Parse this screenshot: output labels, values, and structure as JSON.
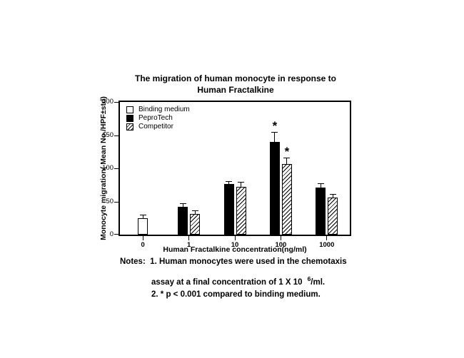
{
  "title": {
    "line1": "The migration of human monocyte in response to",
    "line2": "Human Fractalkine"
  },
  "chart_data": {
    "type": "bar",
    "title": "The migration of human monocyte in response to Human Fractalkine",
    "categories": [
      "0",
      "1",
      "10",
      "100",
      "1000"
    ],
    "series": [
      {
        "name": "Binding medium",
        "style": "open",
        "values": [
          25,
          null,
          null,
          null,
          null
        ],
        "errors": [
          4,
          null,
          null,
          null,
          null
        ]
      },
      {
        "name": "PeproTech",
        "style": "solid",
        "values": [
          null,
          42,
          76,
          140,
          71
        ],
        "errors": [
          null,
          4,
          4,
          14,
          5
        ]
      },
      {
        "name": "Competitor",
        "style": "hatched",
        "values": [
          null,
          31,
          72,
          106,
          56
        ],
        "errors": [
          null,
          4,
          6,
          9,
          4
        ]
      }
    ],
    "ylabel": "Monocyte migration( Mean No./HPF±std)",
    "xlabel": "Human Fractalkine concentration(ng/ml)",
    "ylim": [
      0,
      200
    ],
    "yticks": [
      0,
      50,
      100,
      150,
      200
    ],
    "grid": false,
    "legend_position": "top-left",
    "annotations": [
      {
        "series": "PeproTech",
        "category": "100",
        "text": "*"
      },
      {
        "series": "Competitor",
        "category": "100",
        "text": "*"
      }
    ]
  },
  "notes": {
    "label": "Notes:",
    "line1": "1. Human monocytes were used in the chemotaxis",
    "line2_pre": "assay at a final concentration of 1 X 10",
    "line2_sup": "6",
    "line2_post": "/ml.",
    "line3": "2.  * p < 0.001 compared to binding medium."
  },
  "colors": {
    "axis": "#000000",
    "bar_solid": "#000000",
    "bar_open_fill": "#ffffff"
  }
}
